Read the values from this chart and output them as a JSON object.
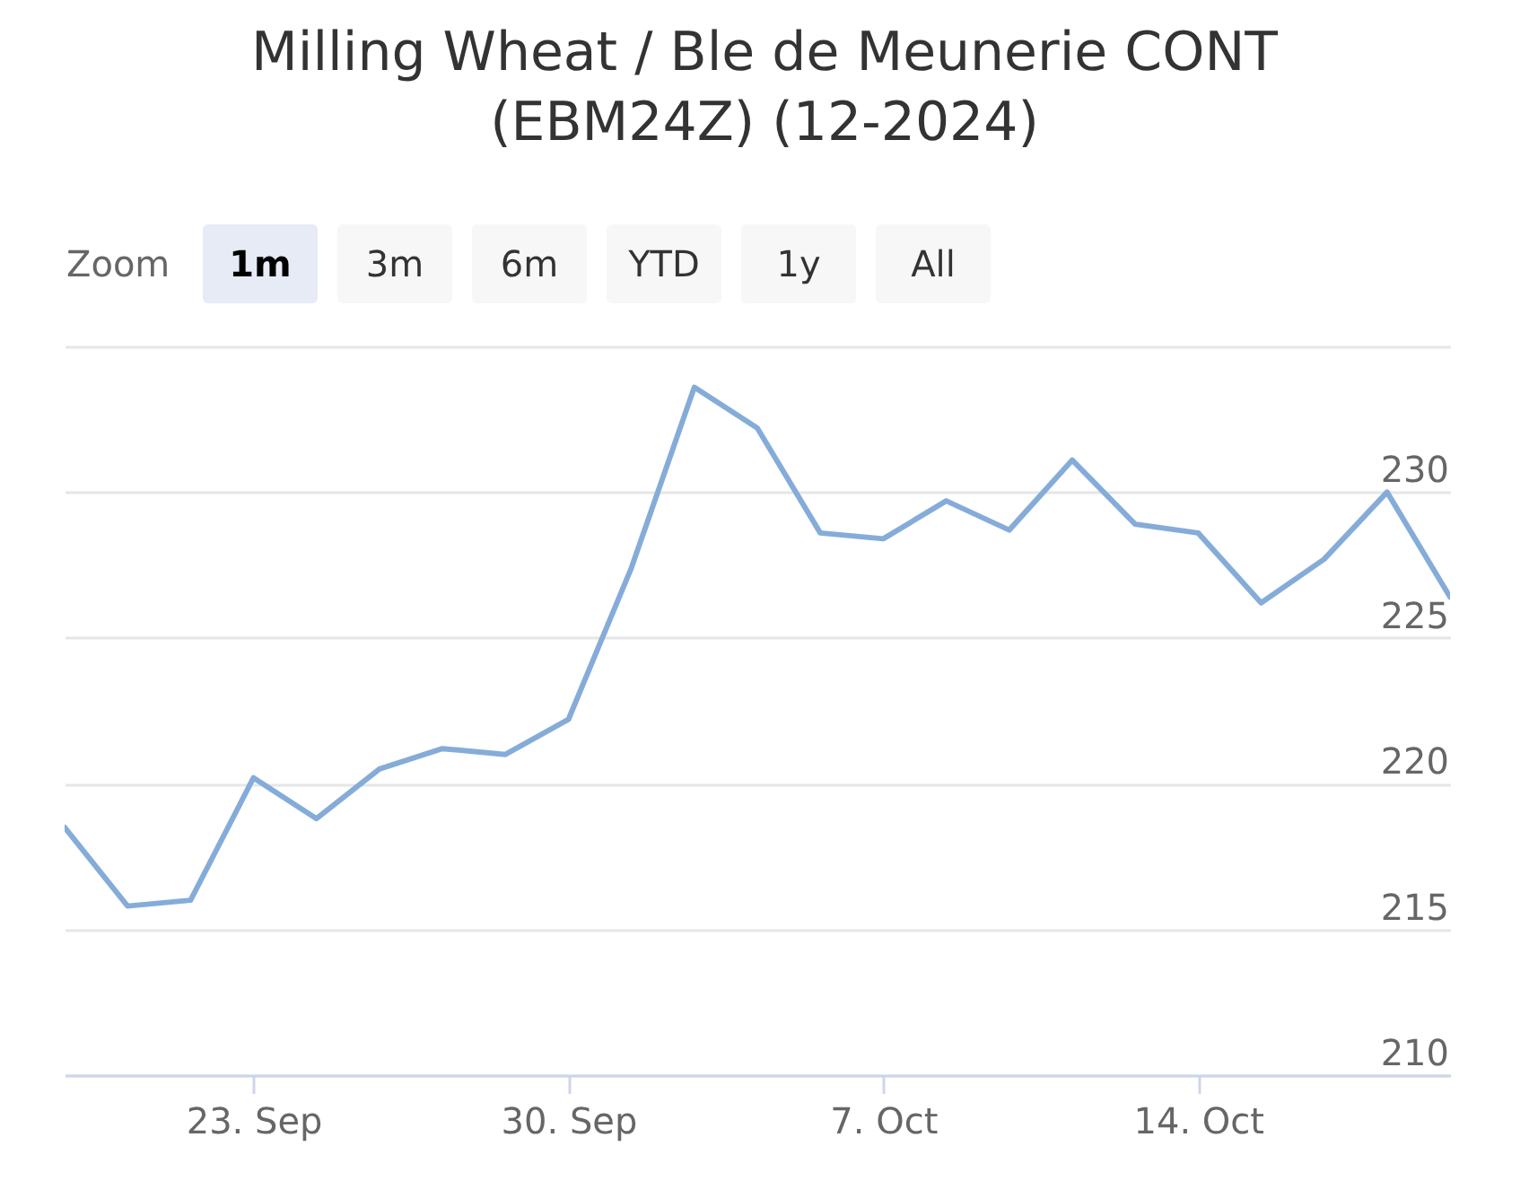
{
  "chart_data": {
    "type": "line",
    "title": "Milling Wheat / Ble de Meunerie CONT (EBM24Z) (12-2024)",
    "categories": [
      null,
      null,
      null,
      "23. Sep",
      null,
      null,
      null,
      null,
      "30. Sep",
      null,
      null,
      null,
      null,
      "7. Oct",
      null,
      null,
      null,
      null,
      "14. Oct",
      null,
      null,
      null,
      null
    ],
    "values": [
      218.5,
      215.8,
      216.0,
      220.2,
      218.8,
      220.5,
      221.2,
      221.0,
      222.2,
      227.4,
      233.6,
      232.2,
      228.6,
      228.4,
      229.7,
      228.7,
      231.1,
      228.9,
      228.6,
      226.2,
      227.7,
      230.0,
      226.4
    ],
    "color": "#85acd9",
    "ylim": [
      210,
      235
    ],
    "yticks": [
      210,
      215,
      220,
      225,
      230,
      {
        "value": 235,
        "label": null
      }
    ],
    "grid": "y",
    "annotations": [
      "Zoom",
      "1m",
      "3m",
      "6m",
      "YTD",
      "1y",
      "All"
    ]
  }
}
